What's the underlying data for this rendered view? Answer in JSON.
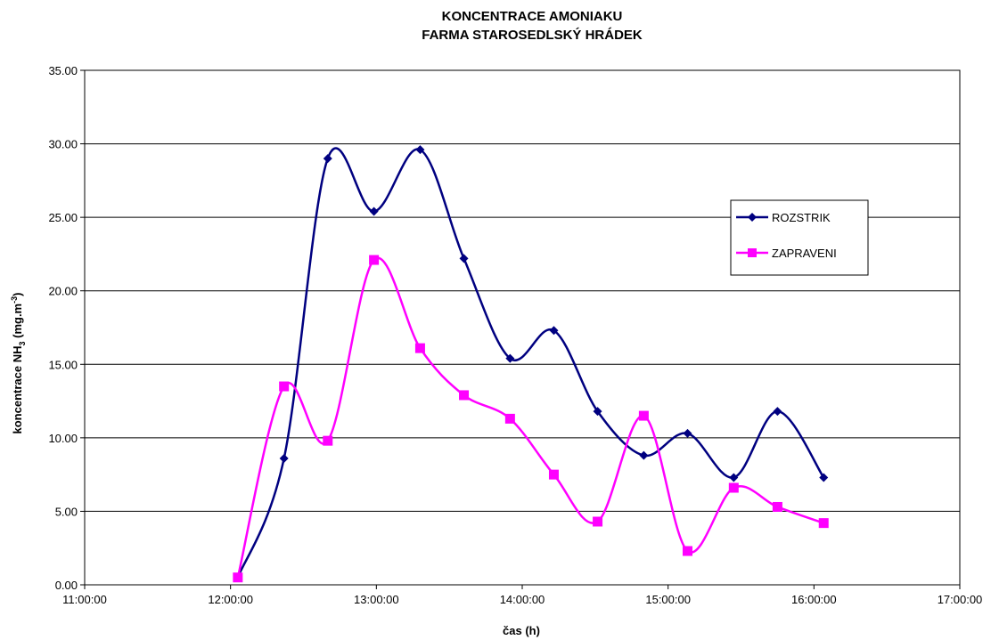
{
  "chart_data": {
    "type": "line",
    "title": [
      "KONCENTRACE AMONIAKU",
      "FARMA STAROSEDLSKÝ HRÁDEK"
    ],
    "xlabel": "čas (h)",
    "ylabel": {
      "prefix": "koncentrace NH",
      "sub": "3",
      "middle": " (mg.m",
      "sup": "-3",
      "suffix": ")"
    },
    "x_axis": {
      "min": "11:00:00",
      "max": "17:00:00",
      "ticks": [
        "11:00:00",
        "12:00:00",
        "13:00:00",
        "14:00:00",
        "15:00:00",
        "16:00:00",
        "17:00:00"
      ]
    },
    "y_axis": {
      "min": 0,
      "max": 35,
      "step": 5,
      "ticks": [
        "0.00",
        "5.00",
        "10.00",
        "15.00",
        "20.00",
        "25.00",
        "30.00",
        "35.00"
      ]
    },
    "grid": "horizontal",
    "legend_position": "right",
    "smooth": true,
    "x": [
      "12:03:00",
      "12:22:00",
      "12:40:00",
      "12:59:00",
      "13:18:00",
      "13:36:00",
      "13:55:00",
      "14:13:00",
      "14:31:00",
      "14:50:00",
      "15:08:00",
      "15:27:00",
      "15:45:00",
      "16:04:00"
    ],
    "series": [
      {
        "name": "ROZSTRIK",
        "color": "#000080",
        "marker": "diamond",
        "values": [
          0.5,
          8.6,
          29.0,
          25.4,
          29.6,
          22.2,
          15.4,
          17.3,
          11.8,
          8.8,
          10.3,
          7.3,
          11.8,
          7.3
        ]
      },
      {
        "name": "ZAPRAVENI",
        "color": "#ff00ff",
        "marker": "square",
        "values": [
          0.5,
          13.5,
          9.8,
          22.1,
          16.1,
          12.9,
          11.3,
          7.5,
          4.3,
          11.5,
          2.3,
          6.6,
          5.3,
          4.2
        ]
      }
    ]
  }
}
